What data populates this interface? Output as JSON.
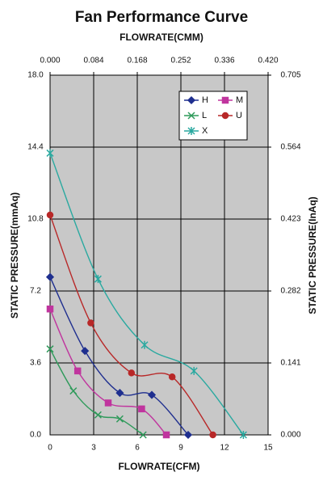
{
  "chart_data": {
    "type": "line",
    "title": "Fan Performance Curve",
    "x_label": "FLOWRATE(CFM)",
    "x2_label": "FLOWRATE(CMM)",
    "y_label": "STATIC PRESSURE(mmAq)",
    "y2_label": "STATIC PRESSURE(InAq)",
    "xlim": [
      0,
      15
    ],
    "xticks": [
      0,
      3,
      6,
      9,
      12,
      15
    ],
    "x2lim": [
      0,
      0.42
    ],
    "x2ticks": [
      {
        "value": 0,
        "label": "0.000"
      },
      0.084,
      0.168,
      0.252,
      0.336,
      {
        "value": 0.42,
        "label": "0.420"
      }
    ],
    "ylim": [
      0,
      18
    ],
    "yticks": [
      {
        "value": 0,
        "label": "0.0"
      },
      3.6,
      7.2,
      10.8,
      14.4,
      {
        "value": 18,
        "label": "18.0"
      }
    ],
    "y2lim": [
      0,
      0.705
    ],
    "y2ticks": [
      {
        "value": 0,
        "label": "0.000"
      },
      0.141,
      0.282,
      0.423,
      0.564,
      0.705
    ],
    "grid": true,
    "legend": "upper right",
    "series": [
      {
        "name": "H",
        "color": "#1f2f8f",
        "marker": "diamond",
        "x": [
          0,
          2.4,
          4.8,
          7,
          9.5
        ],
        "values": [
          7.9,
          4.2,
          2.1,
          2.0,
          0
        ]
      },
      {
        "name": "M",
        "color": "#c0359e",
        "marker": "square",
        "x": [
          0,
          1.9,
          4,
          6.3,
          8
        ],
        "values": [
          6.3,
          3.2,
          1.6,
          1.3,
          0
        ]
      },
      {
        "name": "L",
        "color": "#2e9a5a",
        "marker": "x",
        "x": [
          0,
          1.6,
          3.3,
          4.8,
          6.4
        ],
        "values": [
          4.3,
          2.2,
          1.0,
          0.8,
          0
        ]
      },
      {
        "name": "U",
        "color": "#b82828",
        "marker": "circle",
        "x": [
          0,
          2.8,
          5.6,
          8.4,
          11.2
        ],
        "values": [
          11.0,
          5.6,
          3.1,
          2.9,
          0
        ]
      },
      {
        "name": "X",
        "color": "#2aa9a0",
        "marker": "star",
        "x": [
          0,
          3.3,
          6.5,
          9.9,
          13.3
        ],
        "values": [
          14.1,
          7.8,
          4.5,
          3.2,
          0
        ]
      }
    ]
  }
}
